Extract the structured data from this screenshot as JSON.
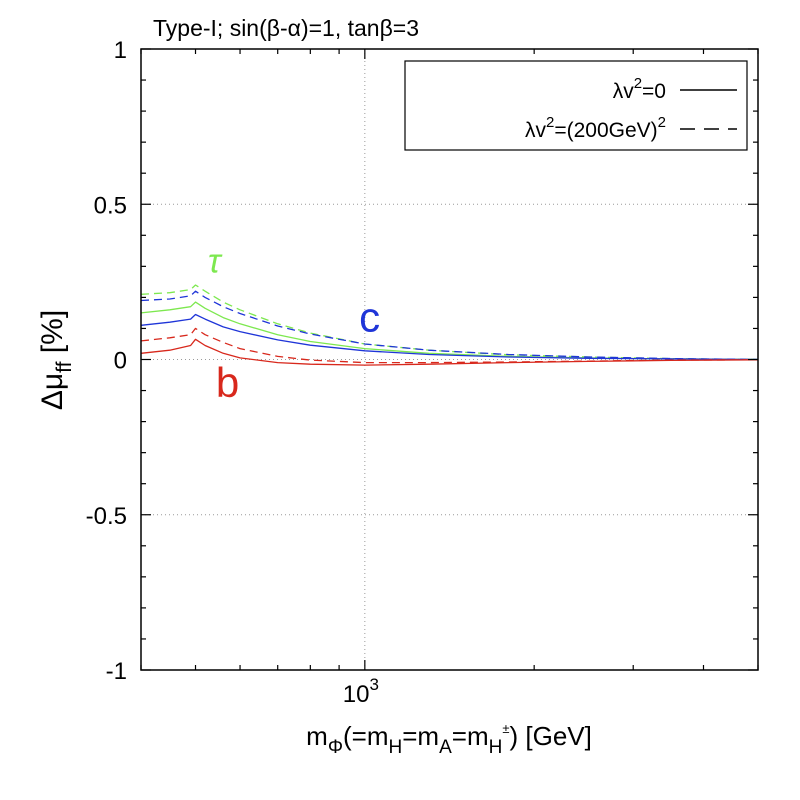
{
  "chart_data": {
    "type": "line",
    "title": "Type-I; sin(β-α)=1, tanβ=3",
    "xlabel": {
      "base": "m",
      "base_sub": "Φ",
      "parts": [
        {
          "text": "(=m",
          "sub": "H"
        },
        {
          "text": "=m",
          "sub": "A"
        },
        {
          "text": "=m",
          "sub": "H",
          "sup": "±"
        },
        {
          "text": ") [GeV]"
        }
      ]
    },
    "ylabel": {
      "base": "Δμ",
      "sub": "ff",
      "unit": " [%]"
    },
    "x_scale": "log",
    "xlim": [
      400,
      5000
    ],
    "ylim": [
      -1,
      1
    ],
    "y_ticks": [
      {
        "value": -1,
        "label": "-1"
      },
      {
        "value": -0.5,
        "label": "-0.5"
      },
      {
        "value": 0,
        "label": "0"
      },
      {
        "value": 0.5,
        "label": "0.5"
      },
      {
        "value": 1,
        "label": "1"
      }
    ],
    "x_major_ticks": [
      {
        "value": 1000,
        "label_base": "10",
        "label_exp": "3"
      }
    ],
    "grid": true,
    "legend": {
      "position": "top-right",
      "entries": [
        {
          "label_base": "λv",
          "label_sup": "2",
          "label_rest": "=0",
          "style": "solid"
        },
        {
          "label_base": "λv",
          "label_sup": "2",
          "label_rest": "=(200GeV)",
          "label_sup2": "2",
          "style": "dashed"
        }
      ]
    },
    "curve_labels": [
      {
        "text": "τ",
        "color": "#7de84f",
        "italic": true,
        "x": 540,
        "y": 0.28
      },
      {
        "text": "c",
        "color": "#1f35d8",
        "italic": false,
        "x": 1020,
        "y": 0.09
      },
      {
        "text": "b",
        "color": "#d8281c",
        "italic": false,
        "x": 570,
        "y": -0.12
      }
    ],
    "series": [
      {
        "name": "tau, λv²=0",
        "flavor": "tau",
        "style": "solid",
        "color": "#7de84f",
        "x": [
          400,
          450,
          490,
          500,
          520,
          560,
          600,
          700,
          800,
          1000,
          1300,
          1800,
          2500,
          3500,
          5000
        ],
        "y": [
          0.15,
          0.16,
          0.17,
          0.185,
          0.165,
          0.135,
          0.115,
          0.08,
          0.058,
          0.035,
          0.02,
          0.01,
          0.005,
          0.002,
          0.0
        ]
      },
      {
        "name": "tau, λv²=(200GeV)²",
        "flavor": "tau",
        "style": "dashed",
        "color": "#7de84f",
        "x": [
          400,
          450,
          490,
          500,
          520,
          560,
          600,
          700,
          800,
          1000,
          1300,
          1800,
          2500,
          3500,
          5000
        ],
        "y": [
          0.21,
          0.215,
          0.225,
          0.24,
          0.22,
          0.185,
          0.16,
          0.115,
          0.085,
          0.05,
          0.03,
          0.015,
          0.008,
          0.003,
          0.0
        ]
      },
      {
        "name": "c, λv²=0",
        "flavor": "c",
        "style": "solid",
        "color": "#1f35d8",
        "x": [
          400,
          450,
          490,
          500,
          520,
          560,
          600,
          700,
          800,
          1000,
          1300,
          1800,
          2500,
          3500,
          5000
        ],
        "y": [
          0.11,
          0.12,
          0.13,
          0.145,
          0.13,
          0.105,
          0.09,
          0.063,
          0.046,
          0.028,
          0.016,
          0.008,
          0.004,
          0.002,
          0.0
        ]
      },
      {
        "name": "c, λv²=(200GeV)²",
        "flavor": "c",
        "style": "dashed",
        "color": "#1f35d8",
        "x": [
          400,
          450,
          490,
          500,
          520,
          560,
          600,
          700,
          800,
          1000,
          1300,
          1800,
          2500,
          3500,
          5000
        ],
        "y": [
          0.19,
          0.195,
          0.205,
          0.22,
          0.2,
          0.17,
          0.148,
          0.108,
          0.082,
          0.05,
          0.03,
          0.016,
          0.008,
          0.003,
          0.0
        ]
      },
      {
        "name": "b, λv²=0",
        "flavor": "b",
        "style": "solid",
        "color": "#d8281c",
        "x": [
          400,
          450,
          490,
          500,
          520,
          560,
          600,
          700,
          800,
          1000,
          1300,
          1800,
          2500,
          3500,
          5000
        ],
        "y": [
          0.02,
          0.03,
          0.045,
          0.065,
          0.045,
          0.02,
          0.005,
          -0.01,
          -0.015,
          -0.018,
          -0.015,
          -0.01,
          -0.006,
          -0.003,
          -0.001
        ]
      },
      {
        "name": "b, λv²=(200GeV)²",
        "flavor": "b",
        "style": "dashed",
        "color": "#d8281c",
        "x": [
          400,
          450,
          490,
          500,
          520,
          560,
          600,
          700,
          800,
          1000,
          1300,
          1800,
          2500,
          3500,
          5000
        ],
        "y": [
          0.06,
          0.07,
          0.08,
          0.1,
          0.08,
          0.055,
          0.035,
          0.01,
          -0.002,
          -0.01,
          -0.01,
          -0.008,
          -0.005,
          -0.002,
          -0.001
        ]
      }
    ]
  }
}
